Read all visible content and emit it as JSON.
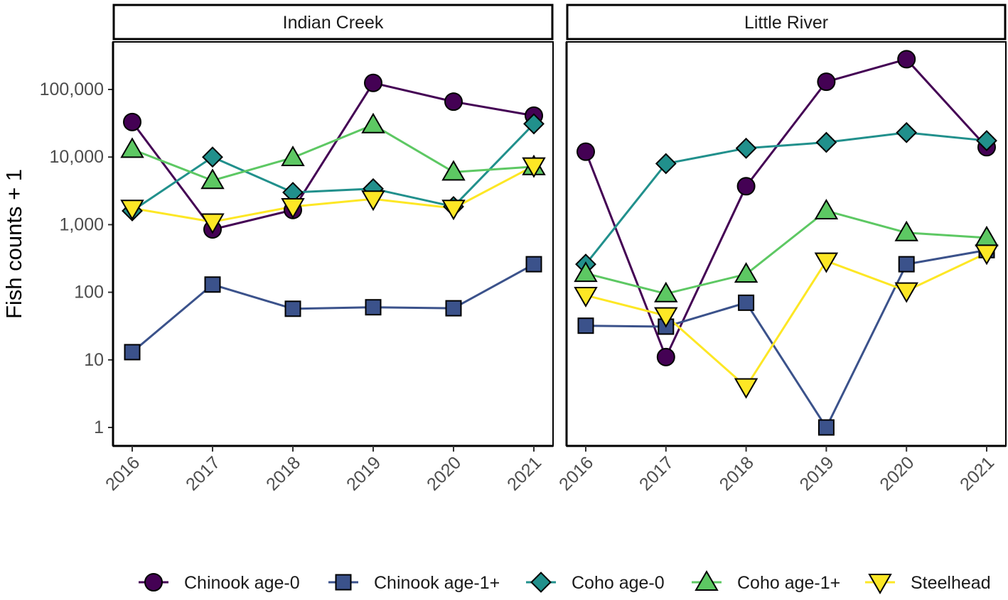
{
  "chart_data": {
    "type": "line",
    "ylabel": "Fish counts + 1",
    "xlabel": "",
    "y_scale": "log10",
    "ylim": [
      0.6,
      500000
    ],
    "y_ticks": [
      {
        "value": 1,
        "label": "1"
      },
      {
        "value": 10,
        "label": "10"
      },
      {
        "value": 100,
        "label": "100"
      },
      {
        "value": 1000,
        "label": "1,000"
      },
      {
        "value": 10000,
        "label": "10,000"
      },
      {
        "value": 100000,
        "label": "100,000"
      }
    ],
    "x": [
      "2016",
      "2017",
      "2018",
      "2019",
      "2020",
      "2021"
    ],
    "grid": false,
    "legend_position": "bottom",
    "series_styles": [
      {
        "name": "Chinook age-0",
        "color": "#440154",
        "marker": "circle"
      },
      {
        "name": "Chinook age-1+",
        "color": "#3B528B",
        "marker": "square"
      },
      {
        "name": "Coho age-0",
        "color": "#21908C",
        "marker": "diamond"
      },
      {
        "name": "Coho age-1+",
        "color": "#5DC863",
        "marker": "triangle-up"
      },
      {
        "name": "Steelhead",
        "color": "#FDE725",
        "marker": "triangle-down"
      }
    ],
    "panels": [
      {
        "title": "Indian Creek",
        "series": [
          {
            "name": "Chinook age-0",
            "values": [
              33000,
              850,
              1650,
              125000,
              66000,
              41000
            ]
          },
          {
            "name": "Chinook age-1+",
            "values": [
              13,
              130,
              57,
              60,
              58,
              260
            ]
          },
          {
            "name": "Coho age-0",
            "values": [
              1600,
              10000,
              3000,
              3400,
              1850,
              31000
            ]
          },
          {
            "name": "Coho age-1+",
            "values": [
              13000,
              4500,
              9800,
              30000,
              6000,
              7200
            ]
          },
          {
            "name": "Steelhead",
            "values": [
              1750,
              1100,
              1850,
              2400,
              1750,
              7400
            ]
          }
        ]
      },
      {
        "title": "Little River",
        "series": [
          {
            "name": "Chinook age-0",
            "values": [
              12000,
              11,
              3700,
              130000,
              280000,
              14000
            ]
          },
          {
            "name": "Chinook age-1+",
            "values": [
              32,
              31,
              70,
              1,
              260,
              420
            ]
          },
          {
            "name": "Coho age-0",
            "values": [
              260,
              8000,
              13500,
              16500,
              23000,
              17500
            ]
          },
          {
            "name": "Coho age-1+",
            "values": [
              190,
              95,
              185,
              1600,
              760,
              640
            ]
          },
          {
            "name": "Steelhead",
            "values": [
              90,
              45,
              4,
              290,
              105,
              380
            ]
          }
        ]
      }
    ]
  }
}
